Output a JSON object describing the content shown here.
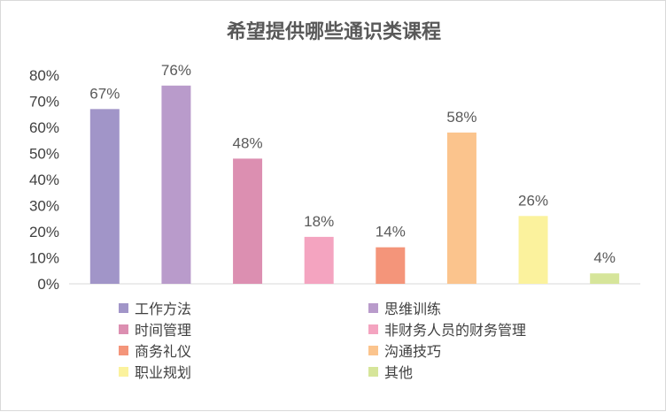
{
  "chart_data": {
    "type": "bar",
    "title": "希望提供哪些通识类课程",
    "xlabel": "",
    "ylabel": "",
    "ylim": [
      0,
      80
    ],
    "yticks": [
      "0%",
      "10%",
      "20%",
      "30%",
      "40%",
      "50%",
      "60%",
      "70%",
      "80%"
    ],
    "categories": [
      "工作方法",
      "思维训练",
      "时间管理",
      "非财务人员的财务管理",
      "商务礼仪",
      "沟通技巧",
      "职业规划",
      "其他"
    ],
    "values": [
      67,
      76,
      48,
      18,
      14,
      58,
      26,
      4
    ],
    "data_labels": [
      "67%",
      "76%",
      "48%",
      "18%",
      "14%",
      "58%",
      "26%",
      "4%"
    ],
    "colors": [
      "#a195c8",
      "#b99bcb",
      "#dc8fb1",
      "#f4a4c0",
      "#f4957a",
      "#fbc48d",
      "#fbf29d",
      "#d6e59a"
    ],
    "grid": false,
    "legend": "bottom"
  }
}
